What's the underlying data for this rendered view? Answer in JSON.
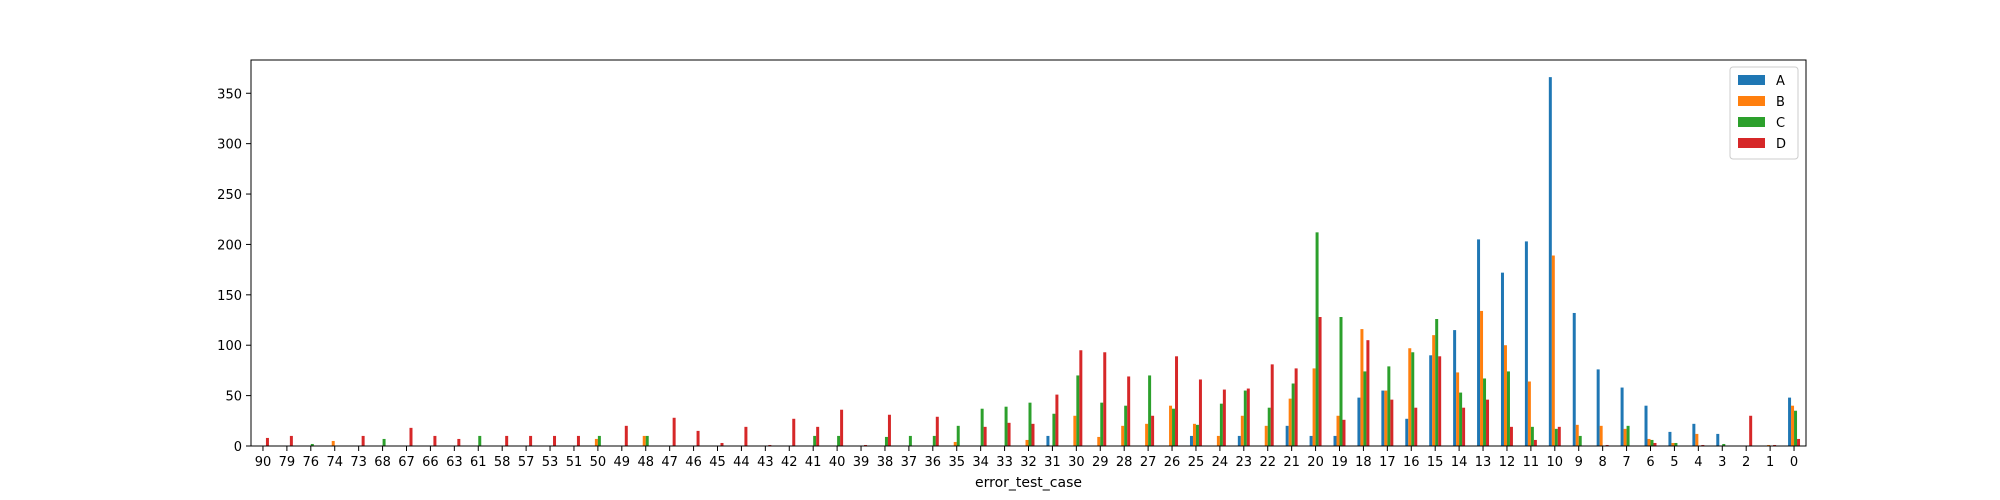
{
  "chart_data": {
    "type": "bar",
    "title": "",
    "xlabel": "error_test_case",
    "ylabel": "",
    "ylim": [
      0,
      383
    ],
    "yticks": [
      0,
      50,
      100,
      150,
      200,
      250,
      300,
      350
    ],
    "grid": false,
    "legend_position": "top-right",
    "categories": [
      "90",
      "79",
      "76",
      "74",
      "73",
      "68",
      "67",
      "66",
      "63",
      "61",
      "58",
      "57",
      "53",
      "51",
      "50",
      "49",
      "48",
      "47",
      "46",
      "45",
      "44",
      "43",
      "42",
      "41",
      "40",
      "39",
      "38",
      "37",
      "36",
      "35",
      "34",
      "33",
      "32",
      "31",
      "30",
      "29",
      "28",
      "27",
      "26",
      "25",
      "24",
      "23",
      "22",
      "21",
      "20",
      "19",
      "18",
      "17",
      "16",
      "15",
      "14",
      "13",
      "12",
      "11",
      "10",
      "9",
      "8",
      "7",
      "6",
      "5",
      "4",
      "3",
      "2",
      "1",
      "0"
    ],
    "series": [
      {
        "name": "A",
        "color": "#1f77b4",
        "values": [
          0,
          0,
          0,
          0,
          0,
          0,
          0,
          0,
          0,
          0,
          0,
          0,
          0,
          0,
          0,
          0,
          0,
          0,
          0,
          0,
          0,
          0,
          0,
          0,
          0,
          0,
          0,
          0,
          0,
          0,
          0,
          0,
          0,
          10,
          0,
          0,
          0,
          0,
          0,
          10,
          0,
          10,
          0,
          20,
          10,
          10,
          48,
          55,
          27,
          90,
          115,
          205,
          172,
          203,
          366,
          132,
          76,
          58,
          40,
          14,
          22,
          12,
          0,
          0,
          48
        ]
      },
      {
        "name": "B",
        "color": "#ff7f0e",
        "values": [
          0,
          0,
          0,
          5,
          0,
          0,
          0,
          0,
          0,
          0,
          0,
          0,
          0,
          0,
          7,
          0,
          10,
          0,
          0,
          0,
          0,
          0,
          0,
          0,
          0,
          0,
          0,
          0,
          0,
          4,
          0,
          0,
          6,
          0,
          30,
          9,
          20,
          22,
          40,
          22,
          10,
          30,
          20,
          47,
          77,
          30,
          116,
          55,
          97,
          110,
          73,
          134,
          100,
          64,
          189,
          21,
          20,
          17,
          7,
          3,
          12,
          0,
          0,
          1,
          40
        ]
      },
      {
        "name": "C",
        "color": "#2ca02c",
        "values": [
          0,
          0,
          2,
          0,
          0,
          7,
          0,
          0,
          0,
          10,
          0,
          0,
          0,
          0,
          10,
          0,
          10,
          0,
          0,
          0,
          0,
          0,
          0,
          10,
          10,
          0,
          9,
          10,
          10,
          20,
          37,
          39,
          43,
          32,
          70,
          43,
          40,
          70,
          37,
          21,
          42,
          55,
          38,
          62,
          212,
          128,
          74,
          79,
          93,
          126,
          53,
          67,
          74,
          19,
          17,
          10,
          0,
          20,
          6,
          3,
          0,
          2,
          0,
          0,
          35
        ]
      },
      {
        "name": "D",
        "color": "#d62728",
        "values": [
          8,
          10,
          0,
          0,
          10,
          0,
          18,
          10,
          7,
          0,
          10,
          10,
          10,
          10,
          0,
          20,
          0,
          28,
          15,
          3,
          19,
          1,
          27,
          19,
          36,
          1,
          31,
          0,
          29,
          0,
          19,
          23,
          22,
          51,
          95,
          93,
          69,
          30,
          89,
          66,
          56,
          57,
          81,
          77,
          128,
          26,
          105,
          46,
          38,
          89,
          38,
          46,
          19,
          6,
          19,
          0,
          1,
          0,
          3,
          0,
          1,
          0,
          30,
          1,
          7
        ]
      }
    ]
  }
}
